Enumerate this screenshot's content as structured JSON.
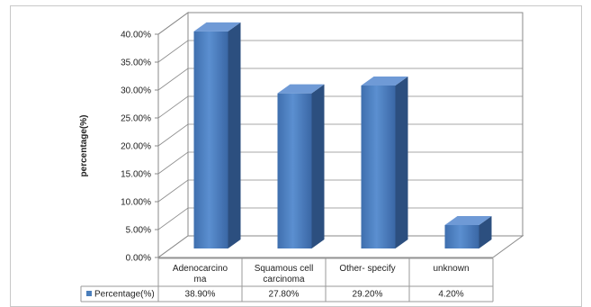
{
  "chart_data": {
    "type": "bar",
    "ylabel": "percentage(%)",
    "yticks": [
      "0.00%",
      "5.00%",
      "10.00%",
      "15.00%",
      "20.00%",
      "25.00%",
      "30.00%",
      "35.00%",
      "40.00%"
    ],
    "ylim": [
      0,
      40
    ],
    "categories": [
      [
        "Adenocarcino",
        "ma"
      ],
      [
        "Squamous cell",
        "carcinoma"
      ],
      [
        "Other- specify"
      ],
      [
        "unknown"
      ]
    ],
    "series": [
      {
        "name": "Percentage(%)",
        "values": [
          38.9,
          27.8,
          29.2,
          4.2
        ],
        "labels": [
          "38.90%",
          "27.80%",
          "29.20%",
          "4.20%"
        ],
        "color": "#4a7ebb"
      }
    ],
    "grid": true,
    "legend": "data-table-left",
    "style": "3d-column"
  }
}
